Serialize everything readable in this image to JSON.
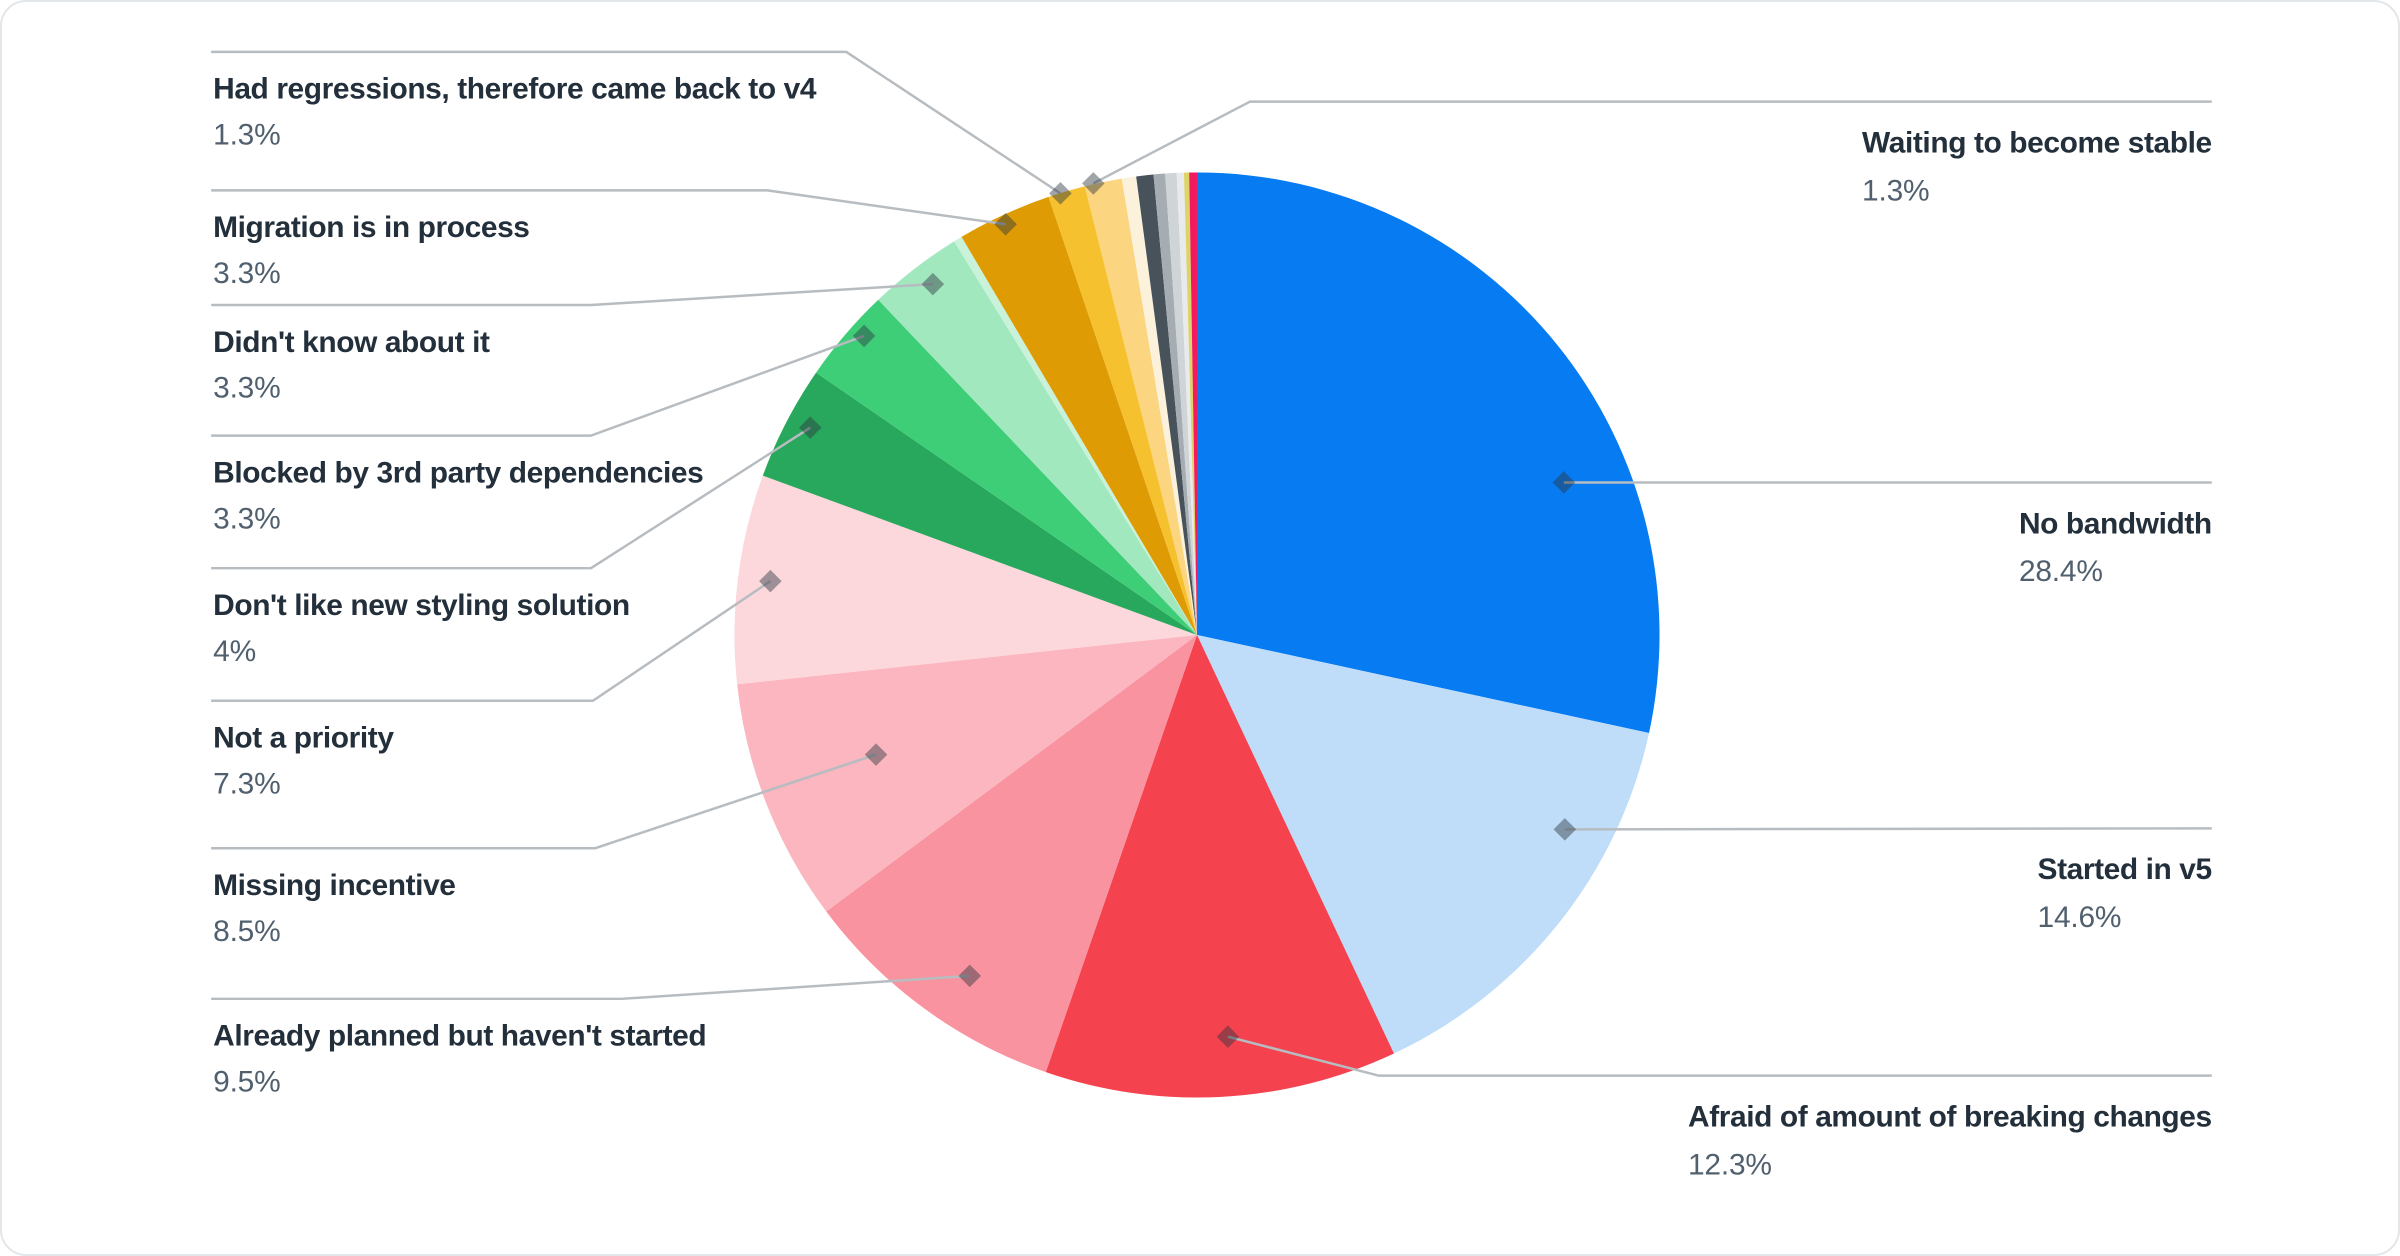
{
  "page": {
    "background": "#ffffff",
    "card_border_color": "#e3e6e9"
  },
  "chart_data": {
    "type": "pie",
    "title": "",
    "legend_position": "callout-labels-left-and-right",
    "value_unit": "%",
    "start_angle": "12-o-clock-clockwise",
    "styles": {
      "title_color": "#232F3B",
      "value_color": "#51606F",
      "line_color": "#B7BCC1",
      "marker_color": "rgba(45,55,65,0.45)"
    },
    "slices": [
      {
        "slug": "no-bandwidth",
        "label": "No bandwidth",
        "value": 28.4,
        "display": "28.4%",
        "color": "#077BF2",
        "labeled": true,
        "side": "right"
      },
      {
        "slug": "started-in-v5",
        "label": "Started in v5",
        "value": 14.6,
        "display": "14.6%",
        "color": "#BFDCF8",
        "labeled": true,
        "side": "right"
      },
      {
        "slug": "afraid-of-breaking-changes",
        "label": "Afraid of amount of breaking changes",
        "value": 12.3,
        "display": "12.3%",
        "color": "#F4424F",
        "labeled": true,
        "side": "right"
      },
      {
        "slug": "already-planned",
        "label": "Already planned but haven't started",
        "value": 9.5,
        "display": "9.5%",
        "color": "#F9939F",
        "labeled": true,
        "side": "left"
      },
      {
        "slug": "missing-incentive",
        "label": "Missing incentive",
        "value": 8.5,
        "display": "8.5%",
        "color": "#FBB6BF",
        "labeled": true,
        "side": "left"
      },
      {
        "slug": "not-a-priority",
        "label": "Not a priority",
        "value": 7.3,
        "display": "7.3%",
        "color": "#FCD7DC",
        "labeled": true,
        "side": "left"
      },
      {
        "slug": "dont-like-new-styling",
        "label": "Don't like new styling solution",
        "value": 4,
        "display": "4%",
        "color": "#28A85C",
        "labeled": true,
        "side": "left"
      },
      {
        "slug": "blocked-by-3rd-party",
        "label": "Blocked by 3rd party dependencies",
        "value": 3.3,
        "display": "3.3%",
        "color": "#3FCE78",
        "labeled": true,
        "side": "left"
      },
      {
        "slug": "didnt-know-about-it",
        "label": "Didn't know about it",
        "value": 3.3,
        "display": "3.3%",
        "color": "#A2E8BF",
        "labeled": true,
        "side": "left"
      },
      {
        "slug": "sliver-pale-mint",
        "label": "",
        "value": 0.3,
        "display": "",
        "color": "#C9F2DA",
        "labeled": false
      },
      {
        "slug": "migration-in-process",
        "label": "Migration is in process",
        "value": 3.3,
        "display": "3.3%",
        "color": "#DE9B04",
        "labeled": true,
        "side": "left"
      },
      {
        "slug": "had-regressions-v4",
        "label": "Had regressions, therefore came back to v4",
        "value": 1.3,
        "display": "1.3%",
        "color": "#F6C12F",
        "labeled": true,
        "side": "left"
      },
      {
        "slug": "waiting-to-become-stable",
        "label": "Waiting to become stable",
        "value": 1.3,
        "display": "1.3%",
        "color": "#FBD57F",
        "labeled": true,
        "side": "right"
      },
      {
        "slug": "sliver-cream",
        "label": "",
        "value": 0.5,
        "display": "",
        "color": "#FCF2DB",
        "labeled": false
      },
      {
        "slug": "sliver-slate",
        "label": "",
        "value": 0.6,
        "display": "",
        "color": "#47525B",
        "labeled": false
      },
      {
        "slug": "sliver-gray",
        "label": "",
        "value": 0.4,
        "display": "",
        "color": "#A5ACB2",
        "labeled": false
      },
      {
        "slug": "sliver-light-gray",
        "label": "",
        "value": 0.4,
        "display": "",
        "color": "#CFD4D7",
        "labeled": false
      },
      {
        "slug": "sliver-lighter-gray",
        "label": "",
        "value": 0.25,
        "display": "",
        "color": "#E8EAEC",
        "labeled": false
      },
      {
        "slug": "sliver-yellow-green",
        "label": "",
        "value": 0.18,
        "display": "",
        "color": "#DCD468",
        "labeled": false
      },
      {
        "slug": "sliver-magenta",
        "label": "",
        "value": 0.27,
        "display": "",
        "color": "#F21A5E",
        "labeled": false
      }
    ]
  }
}
